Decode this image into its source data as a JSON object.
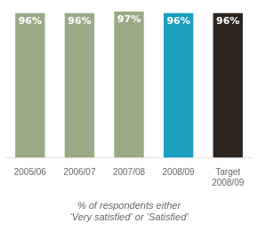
{
  "chart_data": {
    "type": "bar",
    "categories": [
      "2005/06",
      "2006/07",
      "2007/08",
      "2008/09",
      "Target\n2008/09"
    ],
    "values": [
      96,
      96,
      97,
      96,
      96
    ],
    "colors": [
      "#9aaa86",
      "#9aaa86",
      "#9aaa86",
      "#1a9fbe",
      "#2d2520"
    ],
    "value_labels": [
      "96%",
      "96%",
      "97%",
      "96%",
      "96%"
    ],
    "data_labels": true,
    "ylim": [
      0,
      100
    ],
    "tick_labels": "x",
    "grid": false,
    "annotations": [
      "% of respondents either",
      "‘Very satisfied’ or ‘Satisfied’"
    ]
  }
}
